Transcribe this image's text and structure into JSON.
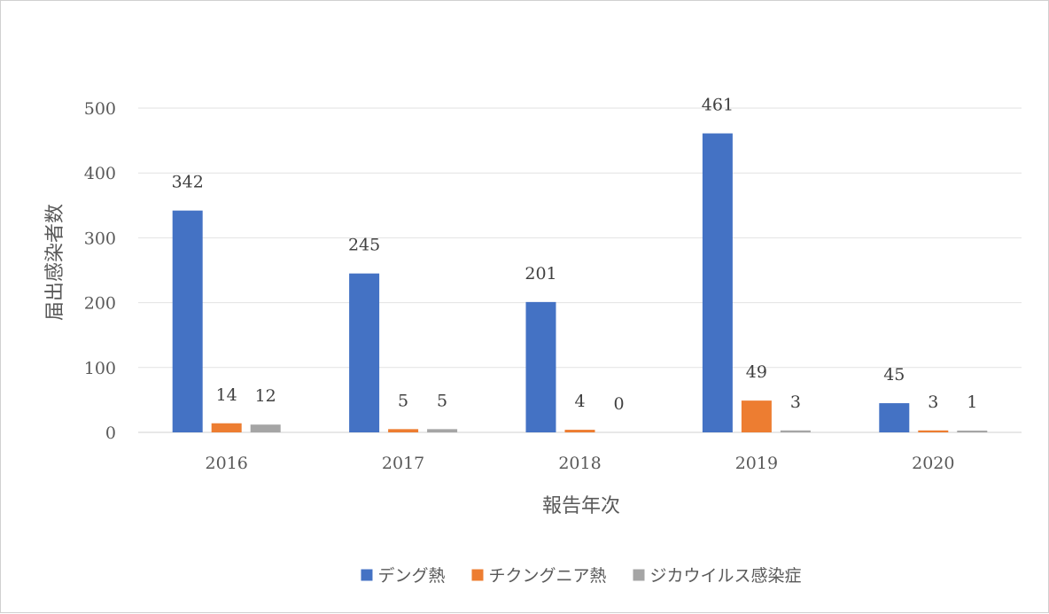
{
  "chart_data": {
    "type": "bar",
    "title": "",
    "xlabel": "報告年次",
    "ylabel": "届出感染者数",
    "categories": [
      "2016",
      "2017",
      "2018",
      "2019",
      "2020"
    ],
    "ylim": [
      0,
      500
    ],
    "yticks": [
      0,
      100,
      200,
      300,
      400,
      500
    ],
    "grid": true,
    "legend_position": "bottom",
    "data_labels": true,
    "series": [
      {
        "name": "デング熱",
        "color": "#4472C4",
        "values": [
          342,
          245,
          201,
          461,
          45
        ]
      },
      {
        "name": "チクングニア熱",
        "color": "#ED7D31",
        "values": [
          14,
          5,
          4,
          49,
          3
        ]
      },
      {
        "name": "ジカウイルス感染症",
        "color": "#A5A5A5",
        "values": [
          12,
          5,
          0,
          3,
          1
        ]
      }
    ]
  }
}
